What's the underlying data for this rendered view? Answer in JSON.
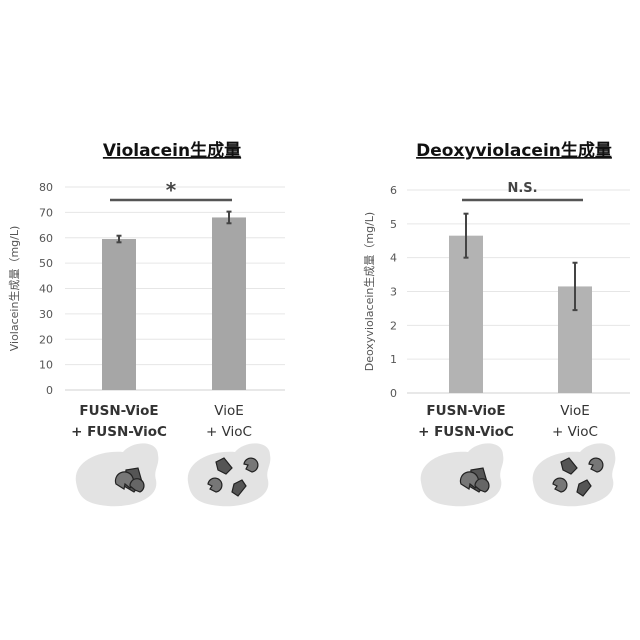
{
  "chart_data": [
    {
      "type": "bar",
      "title": "Violacein生成量",
      "ylabel": "Violacein生成量（mg/L)",
      "xlabel": "",
      "ylim": [
        0,
        80
      ],
      "yticks": [
        0,
        10,
        20,
        30,
        40,
        50,
        60,
        70,
        80
      ],
      "grid": true,
      "categories": [
        {
          "line1": "FUSN-VioE",
          "line2": "+ FUSN-VioC",
          "bold": true
        },
        {
          "line1": "VioE",
          "line2": "+ VioC",
          "bold": false
        }
      ],
      "values": [
        59.5,
        68.0
      ],
      "errors": [
        1.3,
        2.3
      ],
      "bar_color": "#a6a6a6",
      "significance": "*"
    },
    {
      "type": "bar",
      "title": "Deoxyviolacein生成量",
      "ylabel": "Deoxyviolacein生成量（mg/L)",
      "xlabel": "",
      "ylim": [
        0,
        6
      ],
      "yticks": [
        0,
        1,
        2,
        3,
        4,
        5,
        6
      ],
      "grid": true,
      "categories": [
        {
          "line1": "FUSN-VioE",
          "line2": "+ FUSN-VioC",
          "bold": true
        },
        {
          "line1": "VioE",
          "line2": "+ VioC",
          "bold": false
        }
      ],
      "values": [
        4.65,
        3.15
      ],
      "errors": [
        0.65,
        0.7
      ],
      "bar_color": "#b3b3b3",
      "significance": "N.S."
    }
  ]
}
